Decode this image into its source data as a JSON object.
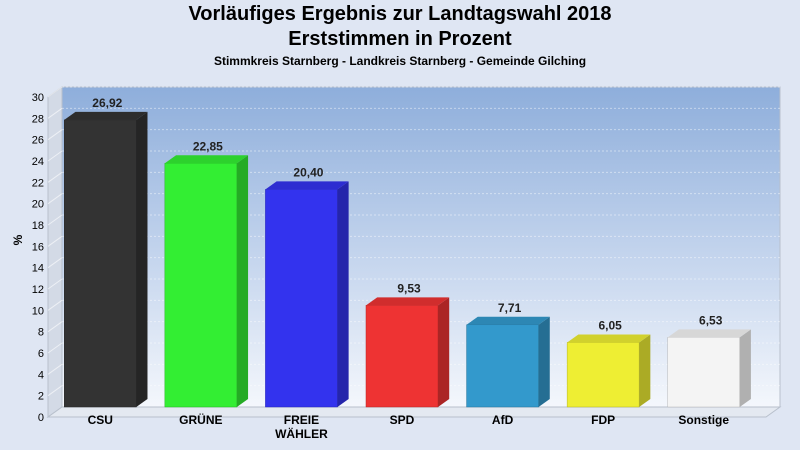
{
  "header": {
    "title": "Vorläufiges Ergebnis zur Landtagswahl 2018",
    "subtitle": "Erststimmen in Prozent",
    "caption": "Stimmkreis Starnberg - Landkreis Starnberg - Gemeinde Gilching"
  },
  "chart_data": {
    "type": "bar",
    "title": "Vorläufiges Ergebnis zur Landtagswahl 2018",
    "subtitle": "Erststimmen in Prozent",
    "xlabel": "",
    "ylabel": "%",
    "ylim": [
      0,
      30
    ],
    "yticks": [
      0,
      2,
      4,
      6,
      8,
      10,
      12,
      14,
      16,
      18,
      20,
      22,
      24,
      26,
      28,
      30
    ],
    "grid": true,
    "categories": [
      "CSU",
      "GRÜNE",
      "FREIE WÄHLER",
      "SPD",
      "AfD",
      "FDP",
      "Sonstige"
    ],
    "category_lines": [
      [
        "CSU"
      ],
      [
        "GRÜNE"
      ],
      [
        "FREIE",
        "WÄHLER"
      ],
      [
        "SPD"
      ],
      [
        "AfD"
      ],
      [
        "FDP"
      ],
      [
        "Sonstige"
      ]
    ],
    "values": [
      26.92,
      22.85,
      20.4,
      9.53,
      7.71,
      6.05,
      6.53
    ],
    "value_labels": [
      "26,92",
      "22,85",
      "20,40",
      "9,53",
      "7,71",
      "6,05",
      "6,53"
    ],
    "colors": [
      "#333333",
      "#33ee33",
      "#3333ee",
      "#ee3333",
      "#3399cc",
      "#eeee33",
      "#f4f4f4"
    ]
  }
}
